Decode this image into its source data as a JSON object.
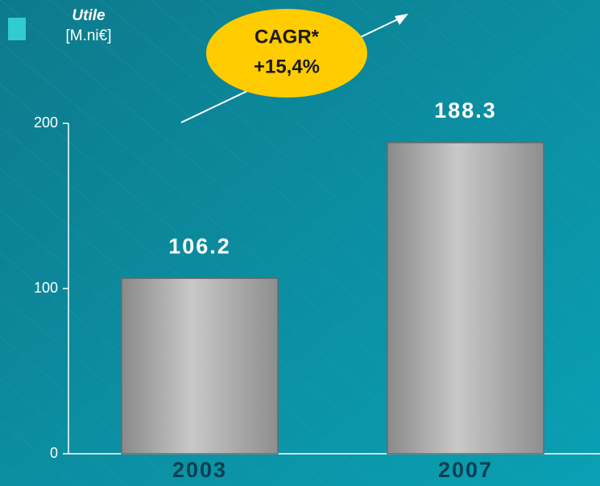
{
  "chart_data": {
    "type": "bar",
    "legend": {
      "name": "Utile",
      "unit": "[M.ni€]",
      "color": "#33cccc"
    },
    "annotation": [
      "CAGR*",
      "+15,4%"
    ],
    "categories": [
      "2003",
      "2007"
    ],
    "values": [
      106.2,
      188.3
    ],
    "color": "#b0b0b0",
    "ylim": [
      0,
      200
    ],
    "yticks": [
      0,
      100,
      200
    ],
    "grid": false
  }
}
